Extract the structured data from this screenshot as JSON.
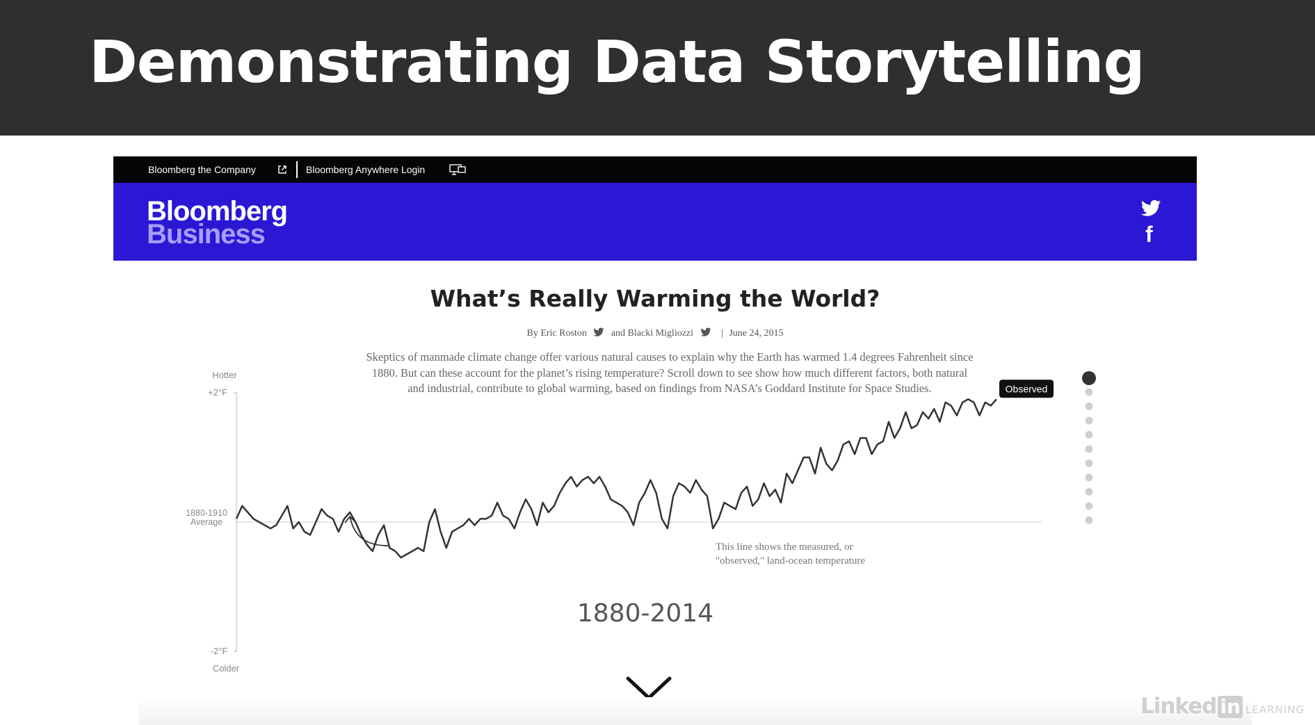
{
  "slide": {
    "title": "Demonstrating Data Storytelling"
  },
  "site": {
    "topbar": {
      "company_link": "Bloomberg the Company",
      "login_link": "Bloomberg Anywhere Login"
    },
    "logo": {
      "line1": "Bloomberg",
      "line2": "Business",
      "line2_color": "#a89cff"
    },
    "brand_color": "#2a18d5",
    "social": [
      "twitter-icon",
      "facebook-icon"
    ]
  },
  "article": {
    "title": "What’s Really Warming the World?",
    "byline": {
      "prefix": "By Eric Roston",
      "joiner": "and Blacki Migliozzi",
      "date": "June 24, 2015"
    },
    "intro": "Skeptics of manmade climate change offer various natural causes to explain why the Earth has warmed 1.4 degrees Fahrenheit since 1880. But can these account for the planet’s rising temperature? Scroll down to see show how much different factors, both natural and industrial, contribute to global warming, based on findings from NASA’s Goddard Institute for Space Studies.",
    "period": "1880-2014"
  },
  "chart_data": {
    "type": "line",
    "title": "",
    "xlabel": "",
    "ylabel": "",
    "ylim": [
      -2,
      2
    ],
    "xlim": [
      1880,
      2014
    ],
    "y_ticks": [
      "+2°F",
      "1880-1910 Average",
      "-2°F"
    ],
    "y_top_label": "Hotter",
    "y_bottom_label": "Colder",
    "baseline": 0,
    "series": [
      {
        "name": "Observed",
        "x": [
          1880,
          1881,
          1882,
          1883,
          1884,
          1885,
          1886,
          1887,
          1888,
          1889,
          1890,
          1891,
          1892,
          1893,
          1894,
          1895,
          1896,
          1897,
          1898,
          1899,
          1900,
          1901,
          1902,
          1903,
          1904,
          1905,
          1906,
          1907,
          1908,
          1909,
          1910,
          1911,
          1912,
          1913,
          1914,
          1915,
          1916,
          1917,
          1918,
          1919,
          1920,
          1921,
          1922,
          1923,
          1924,
          1925,
          1926,
          1927,
          1928,
          1929,
          1930,
          1931,
          1932,
          1933,
          1934,
          1935,
          1936,
          1937,
          1938,
          1939,
          1940,
          1941,
          1942,
          1943,
          1944,
          1945,
          1946,
          1947,
          1948,
          1949,
          1950,
          1951,
          1952,
          1953,
          1954,
          1955,
          1956,
          1957,
          1958,
          1959,
          1960,
          1961,
          1962,
          1963,
          1964,
          1965,
          1966,
          1967,
          1968,
          1969,
          1970,
          1971,
          1972,
          1973,
          1974,
          1975,
          1976,
          1977,
          1978,
          1979,
          1980,
          1981,
          1982,
          1983,
          1984,
          1985,
          1986,
          1987,
          1988,
          1989,
          1990,
          1991,
          1992,
          1993,
          1994,
          1995,
          1996,
          1997,
          1998,
          1999,
          2000,
          2001,
          2002,
          2003,
          2004,
          2005,
          2006,
          2007,
          2008,
          2009,
          2010,
          2011,
          2012,
          2013,
          2014
        ],
        "values": [
          0.05,
          0.25,
          0.15,
          0.05,
          0.0,
          -0.05,
          -0.1,
          -0.05,
          0.1,
          0.25,
          -0.1,
          0.0,
          -0.15,
          -0.2,
          0.0,
          0.2,
          0.1,
          0.05,
          -0.15,
          0.05,
          0.15,
          0.0,
          -0.2,
          -0.35,
          -0.45,
          -0.2,
          -0.05,
          -0.4,
          -0.45,
          -0.55,
          -0.5,
          -0.45,
          -0.4,
          -0.45,
          0.0,
          0.2,
          -0.15,
          -0.4,
          -0.15,
          -0.1,
          -0.05,
          0.05,
          -0.05,
          0.05,
          0.05,
          0.1,
          0.3,
          0.1,
          0.05,
          -0.1,
          0.15,
          0.35,
          0.2,
          -0.05,
          0.3,
          0.15,
          0.25,
          0.45,
          0.6,
          0.7,
          0.55,
          0.65,
          0.7,
          0.6,
          0.7,
          0.55,
          0.35,
          0.3,
          0.25,
          0.15,
          -0.05,
          0.3,
          0.45,
          0.65,
          0.45,
          0.05,
          -0.1,
          0.4,
          0.6,
          0.55,
          0.45,
          0.65,
          0.5,
          0.4,
          -0.1,
          0.05,
          0.3,
          0.25,
          0.2,
          0.45,
          0.55,
          0.25,
          0.35,
          0.6,
          0.4,
          0.5,
          0.3,
          0.75,
          0.6,
          0.8,
          1.0,
          1.0,
          0.75,
          1.15,
          0.9,
          0.8,
          0.95,
          1.2,
          1.25,
          1.05,
          1.3,
          1.3,
          1.05,
          1.2,
          1.25,
          1.55,
          1.3,
          1.45,
          1.7,
          1.45,
          1.5,
          1.7,
          1.6,
          1.75,
          1.55,
          1.85,
          1.8,
          1.65,
          1.85,
          1.9,
          1.85,
          1.65,
          1.85,
          1.8,
          1.9
        ]
      }
    ],
    "annotations": [
      {
        "text_line1": "This line shows the measured, or",
        "text_line2": "\"observed,\" land-ocean temperature",
        "target_year": 1900
      },
      {
        "text": "Observed",
        "target_year": 2014
      }
    ]
  },
  "nav_dots": {
    "count": 11,
    "active_index": 0
  },
  "watermark": {
    "brand": "Linked",
    "in": "in",
    "learning": "LEARNING"
  }
}
